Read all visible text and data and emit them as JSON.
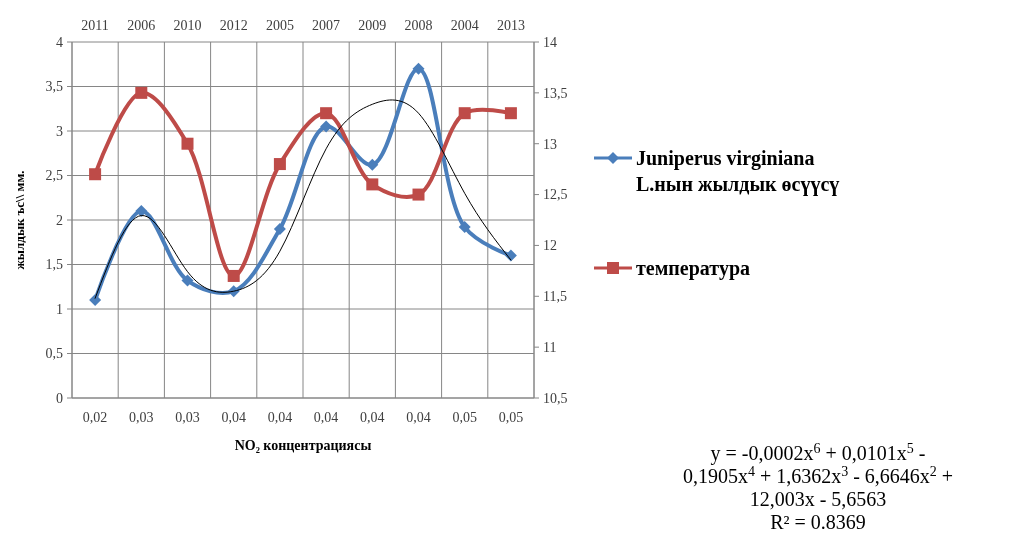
{
  "chart_data": {
    "type": "line",
    "categories": [
      "0,02",
      "0,03",
      "0,03",
      "0,04",
      "0,04",
      "0,04",
      "0,04",
      "0,04",
      "0,05",
      "0,05"
    ],
    "xlabel": "NO₂ концентрациясы",
    "ylabel": "жылдык ъс\\\\ мм.",
    "series": [
      {
        "name": "Juniperus virginiana L.нын жылдык өсүүсү",
        "color": "#4a7ebb",
        "marker": "diamond",
        "values": [
          1.1,
          2.1,
          1.32,
          1.2,
          1.9,
          3.05,
          2.62,
          3.7,
          1.92,
          1.6
        ]
      },
      {
        "name": "температура",
        "color": "#be4b48",
        "marker": "square",
        "axis": "y2",
        "values": [
          12.7,
          13.5,
          13.0,
          11.7,
          12.8,
          13.3,
          12.6,
          12.5,
          13.3,
          13.3
        ]
      },
      {
        "type": "line",
        "color": "#000000",
        "marker": "none",
        "values": [
          1.12,
          2.05,
          1.42,
          1.2,
          1.65,
          2.8,
          3.3,
          3.2,
          2.3,
          1.55
        ]
      }
    ],
    "ylim": [
      0,
      4
    ],
    "yticks": [
      {
        "value": 0,
        "label": "0"
      },
      {
        "value": 0.5,
        "label": "0,5"
      },
      {
        "value": 1,
        "label": "1"
      },
      {
        "value": 1.5,
        "label": "1,5"
      },
      {
        "value": 2,
        "label": "2"
      },
      {
        "value": 2.5,
        "label": "2,5"
      },
      {
        "value": 3,
        "label": "3"
      },
      {
        "value": 3.5,
        "label": "3,5"
      },
      {
        "value": 4,
        "label": "4"
      }
    ],
    "y2lim": [
      10.5,
      14
    ],
    "y2ticks": [
      {
        "value": 10.5,
        "label": "10,5"
      },
      {
        "value": 11,
        "label": "11"
      },
      {
        "value": 11.5,
        "label": "11,5"
      },
      {
        "value": 12,
        "label": "12"
      },
      {
        "value": 12.5,
        "label": "12,5"
      },
      {
        "value": 13,
        "label": "13"
      },
      {
        "value": 13.5,
        "label": "13,5"
      },
      {
        "value": 14,
        "label": "14"
      }
    ],
    "grid": true,
    "legend": "right",
    "annotations": [
      "2011",
      "2006",
      "2010",
      "2012",
      "2005",
      "2007",
      "2009",
      "2008",
      "2004",
      "2013",
      "y = -0,0002x$^{6}$ + 0,0101x$^{5}$ - 0,1905x$^{4}$ + 1,6362x$^{3}$ - 6,6646x$^{2}$ + 12,003x - 5,6563",
      "R² = 0.8369"
    ]
  }
}
